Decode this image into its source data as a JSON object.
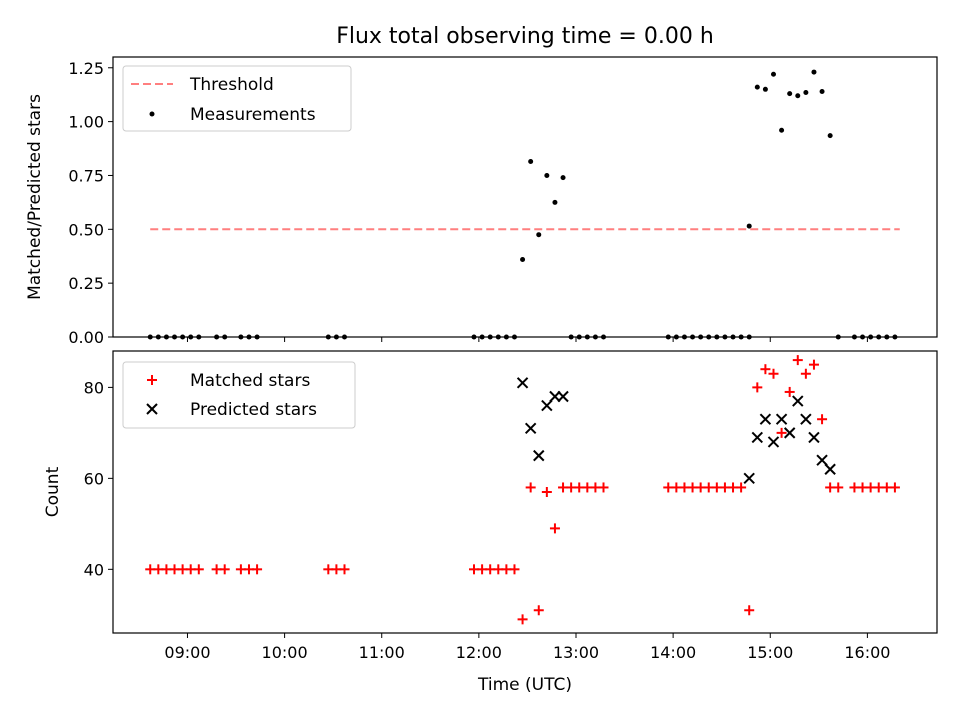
{
  "figure": {
    "title": "Flux total observing time = 0.00 h"
  },
  "chart_data": [
    {
      "type": "scatter",
      "panel": "top",
      "ylabel": "Matched/Predicted stars",
      "ylim": [
        0,
        1.3
      ],
      "yticks": [
        0.0,
        0.25,
        0.5,
        0.75,
        1.0,
        1.25
      ],
      "ytick_labels": [
        "0.00",
        "0.25",
        "0.50",
        "0.75",
        "1.00",
        "1.25"
      ],
      "xticks": [
        "09:00",
        "10:00",
        "11:00",
        "12:00",
        "13:00",
        "14:00",
        "15:00",
        "16:00"
      ],
      "xtick_labels_shown": false,
      "xlim": [
        "08:14",
        "16:43"
      ],
      "grid": false,
      "legend_position": "top-left",
      "threshold": {
        "name": "Threshold",
        "color": "#ff7f7f",
        "style": "dashed",
        "x": [
          "08:37",
          "16:20"
        ],
        "y": 0.5
      },
      "series": [
        {
          "name": "Measurements",
          "color": "#000000",
          "marker": "dot",
          "x": [
            "08:37",
            "08:42",
            "08:47",
            "08:52",
            "08:57",
            "09:02",
            "09:07",
            "09:18",
            "09:23",
            "09:33",
            "09:38",
            "09:43",
            "10:27",
            "10:32",
            "10:37",
            "11:57",
            "12:02",
            "12:07",
            "12:12",
            "12:17",
            "12:22",
            "12:27",
            "12:32",
            "12:37",
            "12:42",
            "12:47",
            "12:52",
            "12:57",
            "13:02",
            "13:07",
            "13:12",
            "13:17",
            "13:57",
            "14:02",
            "14:07",
            "14:12",
            "14:17",
            "14:22",
            "14:27",
            "14:32",
            "14:37",
            "14:42",
            "14:47",
            "14:47",
            "14:52",
            "14:57",
            "15:02",
            "15:07",
            "15:12",
            "15:17",
            "15:22",
            "15:27",
            "15:32",
            "15:37",
            "15:42",
            "15:52",
            "15:57",
            "16:02",
            "16:07",
            "16:12",
            "16:17"
          ],
          "y": [
            0,
            0,
            0,
            0,
            0,
            0,
            0,
            0,
            0,
            0,
            0,
            0,
            0,
            0,
            0,
            0,
            0,
            0,
            0,
            0,
            0,
            0.36,
            0.815,
            0.475,
            0.75,
            0.625,
            0.74,
            0,
            0,
            0,
            0,
            0,
            0,
            0,
            0,
            0,
            0,
            0,
            0,
            0,
            0,
            0,
            0,
            0.515,
            1.16,
            1.15,
            1.22,
            0.96,
            1.13,
            1.12,
            1.135,
            1.23,
            1.14,
            0.935,
            0,
            0,
            0,
            0,
            0,
            0,
            0
          ]
        }
      ]
    },
    {
      "type": "scatter",
      "panel": "bottom",
      "xlabel": "Time (UTC)",
      "ylabel": "Count",
      "ylim": [
        26,
        88
      ],
      "yticks": [
        40,
        60,
        80
      ],
      "xticks": [
        "09:00",
        "10:00",
        "11:00",
        "12:00",
        "13:00",
        "14:00",
        "15:00",
        "16:00"
      ],
      "xlim": [
        "08:14",
        "16:43"
      ],
      "grid": false,
      "legend_position": "top-left",
      "series": [
        {
          "name": "Matched stars",
          "color": "#ff0000",
          "marker": "plus",
          "x": [
            "08:37",
            "08:42",
            "08:47",
            "08:52",
            "08:57",
            "09:02",
            "09:07",
            "09:18",
            "09:23",
            "09:33",
            "09:38",
            "09:43",
            "10:27",
            "10:32",
            "10:37",
            "11:57",
            "12:02",
            "12:07",
            "12:12",
            "12:17",
            "12:22",
            "12:27",
            "12:32",
            "12:37",
            "12:42",
            "12:47",
            "12:52",
            "12:57",
            "13:02",
            "13:07",
            "13:12",
            "13:17",
            "13:57",
            "14:02",
            "14:07",
            "14:12",
            "14:17",
            "14:22",
            "14:27",
            "14:32",
            "14:37",
            "14:42",
            "14:47",
            "14:52",
            "14:57",
            "15:02",
            "15:07",
            "15:12",
            "15:17",
            "15:22",
            "15:27",
            "15:32",
            "15:37",
            "15:42",
            "15:52",
            "15:57",
            "16:02",
            "16:07",
            "16:12",
            "16:17"
          ],
          "y": [
            40,
            40,
            40,
            40,
            40,
            40,
            40,
            40,
            40,
            40,
            40,
            40,
            40,
            40,
            40,
            40,
            40,
            40,
            40,
            40,
            40,
            29,
            58,
            31,
            57,
            49,
            58,
            58,
            58,
            58,
            58,
            58,
            58,
            58,
            58,
            58,
            58,
            58,
            58,
            58,
            58,
            58,
            31,
            80,
            84,
            83,
            70,
            79,
            86,
            83,
            85,
            73,
            58,
            58,
            58,
            58,
            58,
            58,
            58,
            58
          ]
        },
        {
          "name": "Predicted stars",
          "color": "#000000",
          "marker": "x",
          "x": [
            "12:27",
            "12:32",
            "12:37",
            "12:42",
            "12:47",
            "12:52",
            "14:47",
            "14:52",
            "14:57",
            "15:02",
            "15:07",
            "15:12",
            "15:17",
            "15:22",
            "15:27",
            "15:32",
            "15:37"
          ],
          "y": [
            81,
            71,
            65,
            76,
            78,
            78,
            60,
            69,
            73,
            68,
            73,
            70,
            77,
            73,
            69,
            64,
            62
          ]
        }
      ]
    }
  ]
}
